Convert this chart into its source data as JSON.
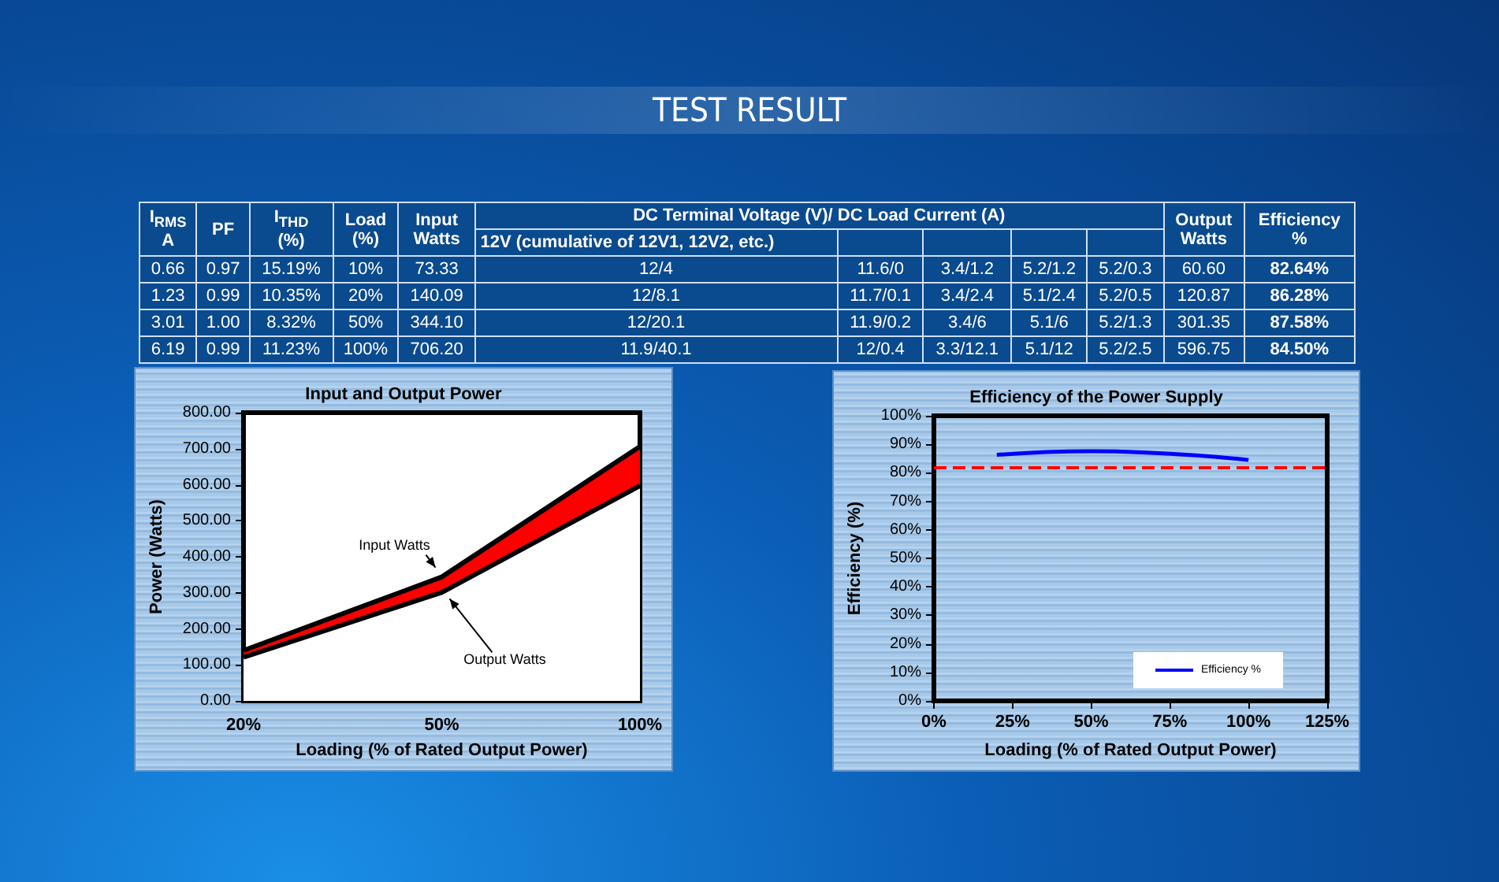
{
  "chart_data": [
    {
      "type": "other",
      "title": "TEST RESULT",
      "annotations": [
        "DC Terminal Voltage (V)/ DC Load Current (A)"
      ],
      "categories": [
        "I$_{RMS}$ A",
        "PF",
        "I$_{THD}$ (%)",
        "Load (%)",
        "Input Watts",
        "12V (cumulative of 12V1, 12V2, etc.)",
        null,
        null,
        null,
        null,
        "Output Watts",
        "Efficiency %"
      ],
      "cell_labels": [
        [
          "0.66",
          "0.97",
          "15.19%",
          "10%",
          "73.33",
          "12/4",
          "11.6/0",
          "3.4/1.2",
          "5.2/1.2",
          "5.2/0.3",
          "60.60",
          "82.64%"
        ],
        [
          "1.23",
          "0.99",
          "10.35%",
          "20%",
          "140.09",
          "12/8.1",
          "11.7/0.1",
          "3.4/2.4",
          "5.1/2.4",
          "5.2/0.5",
          "120.87",
          "86.28%"
        ],
        [
          "3.01",
          "1.00",
          "8.32%",
          "50%",
          "344.10",
          "12/20.1",
          "11.9/0.2",
          "3.4/6",
          "5.1/6",
          "5.2/1.3",
          "301.35",
          "87.58%"
        ],
        [
          "6.19",
          "0.99",
          "11.23%",
          "100%",
          "706.20",
          "11.9/40.1",
          "12/0.4",
          "3.3/12.1",
          "5.1/12",
          "5.2/2.5",
          "596.75",
          "84.50%"
        ]
      ]
    },
    {
      "type": "area",
      "title": "Input and Output Power",
      "xlabel": "Loading (% of Rated Output Power)",
      "ylabel": "Power (Watts)",
      "categories": [
        "20%",
        "50%",
        "100%"
      ],
      "series": [
        {
          "name": "Input Watts",
          "color": "#ff0000",
          "values": [
            140,
            344,
            706
          ]
        },
        {
          "name": "Output Watts",
          "color": "#ffffff",
          "values": [
            121,
            301,
            597
          ]
        }
      ],
      "ylim": [
        0,
        800
      ],
      "yticks": [
        {
          "value": 0,
          "label": "0.00"
        },
        {
          "value": 100,
          "label": "100.00"
        },
        {
          "value": 200,
          "label": "200.00"
        },
        {
          "value": 300,
          "label": "300.00"
        },
        {
          "value": 400,
          "label": "400.00"
        },
        {
          "value": 500,
          "label": "500.00"
        },
        {
          "value": 600,
          "label": "600.00"
        },
        {
          "value": 700,
          "label": "700.00"
        },
        {
          "value": 800,
          "label": "800.00"
        }
      ],
      "legend": false,
      "grid": false
    },
    {
      "type": "line",
      "title": "Efficiency of the Power Supply",
      "xlabel": "Loading (% of Rated Output Power)",
      "ylabel": "Efficiency (%)",
      "series": [
        {
          "name": "Efficiency %",
          "color": "#0000ff",
          "x": [
            20,
            50,
            100
          ],
          "values": [
            86.3,
            87.6,
            84.5
          ]
        }
      ],
      "xlim": [
        0,
        125
      ],
      "xticks": [
        {
          "value": 0,
          "label": "0%"
        },
        {
          "value": 25,
          "label": "25%"
        },
        {
          "value": 50,
          "label": "50%"
        },
        {
          "value": 75,
          "label": "75%"
        },
        {
          "value": 100,
          "label": "100%"
        },
        {
          "value": 125,
          "label": "125%"
        }
      ],
      "ylim": [
        0,
        100
      ],
      "yticks": [
        {
          "value": 0,
          "label": "0%"
        },
        {
          "value": 10,
          "label": "10%"
        },
        {
          "value": 20,
          "label": "20%"
        },
        {
          "value": 30,
          "label": "30%"
        },
        {
          "value": 40,
          "label": "40%"
        },
        {
          "value": 50,
          "label": "50%"
        },
        {
          "value": 60,
          "label": "60%"
        },
        {
          "value": 70,
          "label": "70%"
        },
        {
          "value": 80,
          "label": "80%"
        },
        {
          "value": 90,
          "label": "90%"
        },
        {
          "value": 100,
          "label": "100%"
        }
      ],
      "ref_lines": [
        {
          "axis": "y",
          "value": 82,
          "color": "#ff0000",
          "line_style": "dashed"
        }
      ],
      "marker": "none",
      "legend": "bottom right",
      "grid": false
    }
  ]
}
